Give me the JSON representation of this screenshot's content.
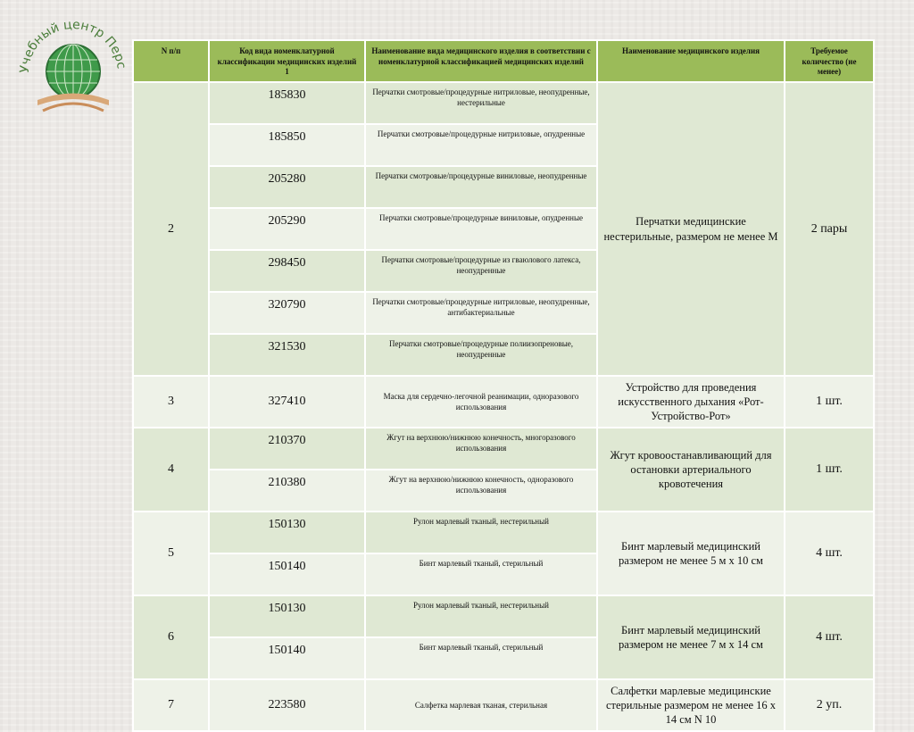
{
  "logo": {
    "text": "Учебный центр Перспектива"
  },
  "colors": {
    "header": "#9bbb59",
    "row_dark": "#dfe8d3",
    "row_light": "#eef2e8"
  },
  "headers": [
    "N п/п",
    "Код вида номенклатурной классификации медицинских изделий 1",
    "Наименование вида медицинского изделия в соответствии с номенклатурной классификацией медицинских изделий",
    "Наименование медицинского изделия",
    "Требуемое количество (не менее)"
  ],
  "groups": [
    {
      "num": "2",
      "name": "Перчатки медицинские нестерильные, размером не менее M",
      "qty": "2 пары",
      "items": [
        {
          "code": "185830",
          "desc": "Перчатки смотровые/процедурные нитриловые, неопудренные, нестерильные"
        },
        {
          "code": "185850",
          "desc": "Перчатки смотровые/процедурные нитриловые, опудренные"
        },
        {
          "code": "205280",
          "desc": "Перчатки смотровые/процедурные виниловые, неопудренные"
        },
        {
          "code": "205290",
          "desc": "Перчатки смотровые/процедурные виниловые, опудренные"
        },
        {
          "code": "298450",
          "desc": "Перчатки смотровые/процедурные из гваюлового латекса, неопудренные"
        },
        {
          "code": "320790",
          "desc": "Перчатки смотровые/процедурные нитриловые, неопудренные, антибактериальные"
        },
        {
          "code": "321530",
          "desc": "Перчатки смотровые/процедурные полиизопреновые, неопудренные"
        }
      ]
    },
    {
      "num": "3",
      "name": "Устройство для проведения искусственного дыхания «Рот-Устройство-Рот»",
      "qty": "1 шт.",
      "items": [
        {
          "code": "327410",
          "desc": "Маска для сердечно-легочной реанимации, одноразового использования"
        }
      ]
    },
    {
      "num": "4",
      "name": "Жгут кровоостанавливающий для остановки артериального кровотечения",
      "qty": "1 шт.",
      "items": [
        {
          "code": "210370",
          "desc": "Жгут на верхнюю/нижнюю конечность, многоразового использования"
        },
        {
          "code": "210380",
          "desc": "Жгут на верхнюю/нижнюю конечность, одноразового использования"
        }
      ]
    },
    {
      "num": "5",
      "name": "Бинт марлевый медицинский размером не менее 5 м x 10 см",
      "qty": "4 шт.",
      "items": [
        {
          "code": "150130",
          "desc": "Рулон марлевый тканый, нестерильный"
        },
        {
          "code": "150140",
          "desc": "Бинт марлевый тканый, стерильный"
        }
      ]
    },
    {
      "num": "6",
      "name": "Бинт марлевый медицинский размером не менее 7 м x 14 см",
      "qty": "4 шт.",
      "items": [
        {
          "code": "150130",
          "desc": "Рулон марлевый тканый, нестерильный"
        },
        {
          "code": "150140",
          "desc": "Бинт марлевый тканый, стерильный"
        }
      ]
    },
    {
      "num": "7",
      "name": "Салфетки марлевые медицинские стерильные размером не менее 16 x 14 см N 10",
      "qty": "2 уп.",
      "items": [
        {
          "code": "223580",
          "desc": "Салфетка марлевая тканая, стерильная"
        }
      ]
    }
  ]
}
